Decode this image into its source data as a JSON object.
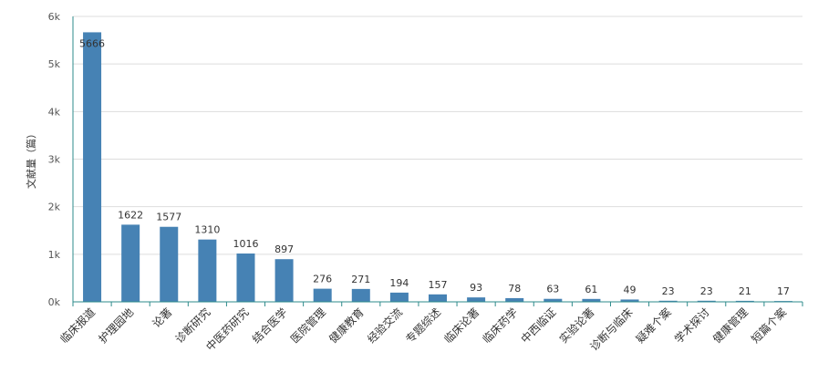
{
  "chart_data": {
    "type": "bar",
    "ylabel": "文献量（篇）",
    "xlabel": "",
    "ylim": [
      0,
      6000
    ],
    "yticks": [
      0,
      1000,
      2000,
      3000,
      4000,
      5000,
      6000
    ],
    "ytick_labels": [
      "0k",
      "1k",
      "2k",
      "3k",
      "4k",
      "5k",
      "6k"
    ],
    "categories": [
      "临床报道",
      "护理园地",
      "论著",
      "诊断研究",
      "中医药研究",
      "结合医学",
      "医院管理",
      "健康教育",
      "经验交流",
      "专题综述",
      "临床论著",
      "临床药学",
      "中西临证",
      "实验论著",
      "诊断与临床",
      "疑难个案",
      "学术探讨",
      "健康管理",
      "短篇个案"
    ],
    "values": [
      5666,
      1622,
      1577,
      1310,
      1016,
      897,
      276,
      271,
      194,
      157,
      93,
      78,
      63,
      61,
      49,
      23,
      23,
      21,
      17
    ],
    "data_labels": [
      "5666",
      "1622",
      "1577",
      "1310",
      "1016",
      "897",
      "276",
      "271",
      "194",
      "157",
      "93",
      "78",
      "63",
      "61",
      "49",
      "23",
      "23",
      "21",
      "17"
    ],
    "grid": true,
    "colors": {
      "bar": "#4682b4",
      "axis": "#2e8b8b",
      "grid": "#dddddd"
    }
  }
}
